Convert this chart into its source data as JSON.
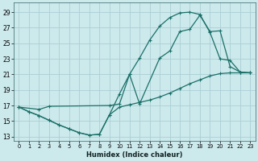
{
  "xlabel": "Humidex (Indice chaleur)",
  "bg_color": "#cce9ec",
  "grid_color": "#aacfd6",
  "line_color": "#1a7068",
  "xlim": [
    -0.5,
    23.5
  ],
  "ylim": [
    12.5,
    30.2
  ],
  "xticks": [
    0,
    1,
    2,
    3,
    4,
    5,
    6,
    7,
    8,
    9,
    10,
    11,
    12,
    13,
    14,
    15,
    16,
    17,
    18,
    19,
    20,
    21,
    22,
    23
  ],
  "yticks": [
    13,
    15,
    17,
    19,
    21,
    23,
    25,
    27,
    29
  ],
  "curve1_x": [
    0,
    1,
    2,
    3,
    4,
    5,
    6,
    7,
    8,
    9,
    10,
    11,
    12,
    13,
    14,
    15,
    16,
    17,
    18,
    19,
    20,
    21,
    22,
    23
  ],
  "curve1_y": [
    16.8,
    16.2,
    15.7,
    15.1,
    14.5,
    14.0,
    13.5,
    13.2,
    13.3,
    15.8,
    18.5,
    21.0,
    23.1,
    25.4,
    27.2,
    28.3,
    28.9,
    29.0,
    28.7,
    26.4,
    23.0,
    22.8,
    21.3,
    21.2
  ],
  "curve2_x": [
    0,
    1,
    2,
    3,
    4,
    5,
    6,
    7,
    8,
    9,
    10,
    11,
    12,
    13,
    14,
    15,
    16,
    17,
    18,
    19,
    20,
    21,
    22,
    23
  ],
  "curve2_y": [
    16.8,
    16.2,
    15.7,
    15.1,
    14.5,
    14.0,
    13.5,
    13.2,
    13.3,
    15.8,
    16.8,
    17.1,
    17.4,
    17.7,
    18.1,
    18.6,
    19.2,
    19.8,
    20.3,
    20.8,
    21.1,
    21.2,
    21.2,
    21.2
  ],
  "curve3_x": [
    0,
    2,
    3,
    9,
    10,
    11,
    12,
    14,
    15,
    16,
    17,
    18,
    19,
    20,
    21,
    22,
    23
  ],
  "curve3_y": [
    16.8,
    16.5,
    16.9,
    17.0,
    17.2,
    21.0,
    17.2,
    23.1,
    24.0,
    26.5,
    26.8,
    28.6,
    26.5,
    26.6,
    22.0,
    21.3,
    21.2
  ]
}
